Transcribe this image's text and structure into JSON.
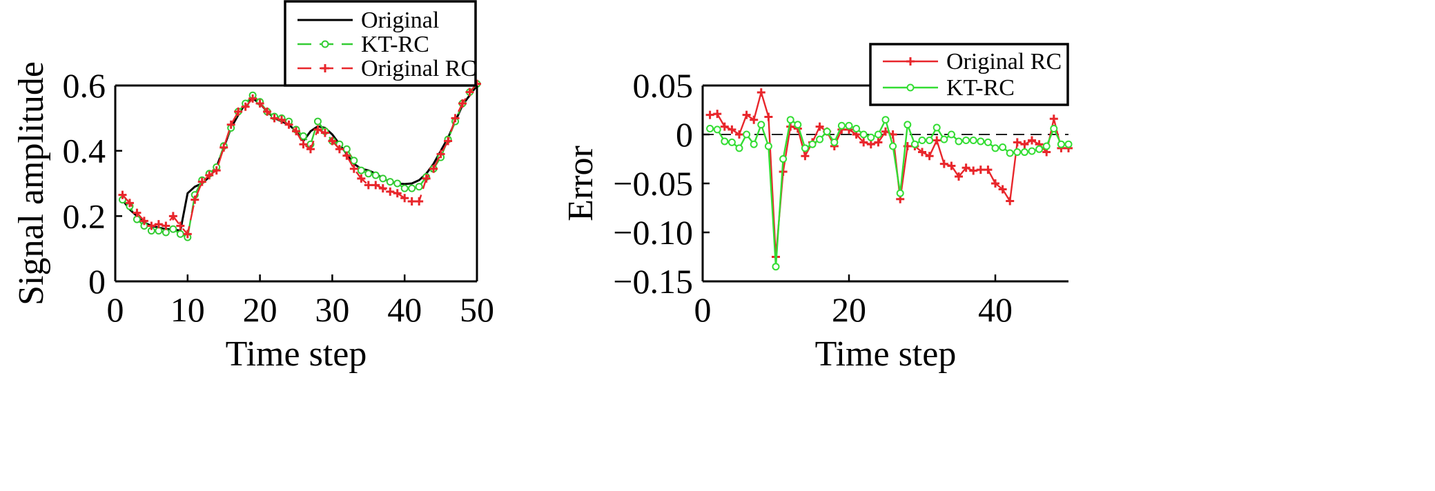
{
  "chart_data": [
    {
      "type": "line",
      "xlabel": "Time step",
      "ylabel": "Signal amplitude",
      "xlim": [
        0,
        50
      ],
      "ylim": [
        0,
        0.6
      ],
      "xticks": [
        0,
        10,
        20,
        30,
        40,
        50
      ],
      "xtick_labels": [
        "0",
        "10",
        "20",
        "30",
        "40",
        "50"
      ],
      "yticks": [
        0,
        0.2,
        0.4,
        0.6
      ],
      "ytick_labels": [
        "0",
        "0.2",
        "0.4",
        "0.6"
      ],
      "grid": false,
      "legend_position": "top-center-outside",
      "series": [
        {
          "name": "Original",
          "color": "#000000",
          "linestyle": "solid",
          "marker": "none",
          "x": [
            1,
            2,
            3,
            4,
            5,
            6,
            7,
            8,
            9,
            10,
            11,
            12,
            13,
            14,
            15,
            16,
            17,
            18,
            19,
            20,
            21,
            22,
            23,
            24,
            25,
            26,
            27,
            28,
            29,
            30,
            31,
            32,
            33,
            34,
            35,
            36,
            37,
            38,
            39,
            40,
            41,
            42,
            43,
            44,
            45,
            46,
            47,
            48,
            49,
            50
          ],
          "y": [
            0.25,
            0.22,
            0.2,
            0.18,
            0.17,
            0.165,
            0.16,
            0.16,
            0.155,
            0.27,
            0.29,
            0.3,
            0.32,
            0.35,
            0.41,
            0.47,
            0.51,
            0.545,
            0.56,
            0.545,
            0.52,
            0.5,
            0.49,
            0.48,
            0.46,
            0.43,
            0.46,
            0.475,
            0.47,
            0.45,
            0.42,
            0.39,
            0.36,
            0.345,
            0.34,
            0.33,
            0.315,
            0.305,
            0.3,
            0.298,
            0.3,
            0.31,
            0.33,
            0.36,
            0.4,
            0.44,
            0.49,
            0.54,
            0.57,
            0.6
          ]
        },
        {
          "name": "KT-RC",
          "color": "#33cc33",
          "linestyle": "dashed",
          "marker": "circle",
          "x": [
            1,
            2,
            3,
            4,
            5,
            6,
            7,
            8,
            9,
            10,
            11,
            12,
            13,
            14,
            15,
            16,
            17,
            18,
            19,
            20,
            21,
            22,
            23,
            24,
            25,
            26,
            27,
            28,
            29,
            30,
            31,
            32,
            33,
            34,
            35,
            36,
            37,
            38,
            39,
            40,
            41,
            42,
            43,
            44,
            45,
            46,
            47,
            48,
            49,
            50
          ],
          "y": [
            0.25,
            0.23,
            0.19,
            0.17,
            0.155,
            0.155,
            0.15,
            0.16,
            0.145,
            0.135,
            0.265,
            0.31,
            0.33,
            0.35,
            0.415,
            0.47,
            0.52,
            0.545,
            0.57,
            0.55,
            0.52,
            0.505,
            0.5,
            0.49,
            0.465,
            0.445,
            0.42,
            0.49,
            0.46,
            0.43,
            0.42,
            0.405,
            0.37,
            0.34,
            0.33,
            0.325,
            0.315,
            0.305,
            0.3,
            0.285,
            0.285,
            0.29,
            0.32,
            0.345,
            0.38,
            0.435,
            0.49,
            0.545,
            0.58,
            0.605
          ]
        },
        {
          "name": "Original RC",
          "color": "#e8262b",
          "linestyle": "dashed",
          "marker": "plus",
          "x": [
            1,
            2,
            3,
            4,
            5,
            6,
            7,
            8,
            9,
            10,
            11,
            12,
            13,
            14,
            15,
            16,
            17,
            18,
            19,
            20,
            21,
            22,
            23,
            24,
            25,
            26,
            27,
            28,
            29,
            30,
            31,
            32,
            33,
            34,
            35,
            36,
            37,
            38,
            39,
            40,
            41,
            42,
            43,
            44,
            45,
            46,
            47,
            48,
            49,
            50
          ],
          "y": [
            0.265,
            0.24,
            0.21,
            0.185,
            0.17,
            0.175,
            0.17,
            0.2,
            0.17,
            0.145,
            0.25,
            0.305,
            0.325,
            0.34,
            0.41,
            0.48,
            0.52,
            0.535,
            0.56,
            0.545,
            0.52,
            0.5,
            0.495,
            0.48,
            0.46,
            0.42,
            0.405,
            0.465,
            0.455,
            0.43,
            0.405,
            0.385,
            0.345,
            0.315,
            0.295,
            0.295,
            0.285,
            0.275,
            0.27,
            0.255,
            0.245,
            0.245,
            0.315,
            0.345,
            0.39,
            0.43,
            0.5,
            0.545,
            0.58,
            0.605
          ]
        }
      ]
    },
    {
      "type": "line",
      "xlabel": "Time step",
      "ylabel": "Error",
      "xlim": [
        0,
        50
      ],
      "ylim": [
        -0.15,
        0.05
      ],
      "xticks": [
        0,
        20,
        40
      ],
      "xtick_labels": [
        "0",
        "20",
        "40"
      ],
      "yticks": [
        0.05,
        0,
        -0.05,
        -0.1,
        -0.15
      ],
      "ytick_labels": [
        "0.05",
        "0",
        "−0.05",
        "−0.10",
        "−0.15"
      ],
      "zero_line": true,
      "grid": false,
      "legend_position": "top-right",
      "series": [
        {
          "name": "Original RC",
          "color": "#e8262b",
          "linestyle": "solid",
          "marker": "plus",
          "x": [
            1,
            2,
            3,
            4,
            5,
            6,
            7,
            8,
            9,
            10,
            11,
            12,
            13,
            14,
            15,
            16,
            17,
            18,
            19,
            20,
            21,
            22,
            23,
            24,
            25,
            26,
            27,
            28,
            29,
            30,
            31,
            32,
            33,
            34,
            35,
            36,
            37,
            38,
            39,
            40,
            41,
            42,
            43,
            44,
            45,
            46,
            47,
            48,
            49,
            50
          ],
          "y": [
            0.02,
            0.021,
            0.008,
            0.005,
            0.0,
            0.02,
            0.015,
            0.043,
            0.018,
            -0.125,
            -0.038,
            0.008,
            0.006,
            -0.022,
            -0.008,
            0.008,
            0.003,
            -0.012,
            0.005,
            0.005,
            0.0,
            -0.008,
            -0.01,
            -0.008,
            0.003,
            0.0,
            -0.066,
            -0.012,
            -0.012,
            -0.018,
            -0.022,
            -0.006,
            -0.03,
            -0.032,
            -0.043,
            -0.034,
            -0.037,
            -0.036,
            -0.036,
            -0.05,
            -0.056,
            -0.068,
            -0.008,
            -0.01,
            -0.006,
            -0.01,
            -0.018,
            0.016,
            -0.014,
            -0.014
          ]
        },
        {
          "name": "KT-RC",
          "color": "#33dd33",
          "linestyle": "solid",
          "marker": "circle",
          "x": [
            1,
            2,
            3,
            4,
            5,
            6,
            7,
            8,
            9,
            10,
            11,
            12,
            13,
            14,
            15,
            16,
            17,
            18,
            19,
            20,
            21,
            22,
            23,
            24,
            25,
            26,
            27,
            28,
            29,
            30,
            31,
            32,
            33,
            34,
            35,
            36,
            37,
            38,
            39,
            40,
            41,
            42,
            43,
            44,
            45,
            46,
            47,
            48,
            49,
            50
          ],
          "y": [
            0.006,
            0.005,
            -0.007,
            -0.008,
            -0.014,
            0.0,
            -0.01,
            0.01,
            -0.012,
            -0.135,
            -0.025,
            0.015,
            0.01,
            -0.014,
            -0.01,
            -0.005,
            0.003,
            -0.008,
            0.009,
            0.009,
            0.006,
            0.0,
            -0.003,
            0.0,
            0.015,
            -0.012,
            -0.06,
            0.01,
            -0.01,
            -0.006,
            -0.006,
            0.007,
            -0.005,
            0.0,
            -0.007,
            -0.006,
            -0.006,
            -0.007,
            -0.008,
            -0.014,
            -0.013,
            -0.019,
            -0.018,
            -0.018,
            -0.017,
            -0.015,
            -0.012,
            0.006,
            -0.01,
            -0.01
          ]
        }
      ]
    }
  ]
}
